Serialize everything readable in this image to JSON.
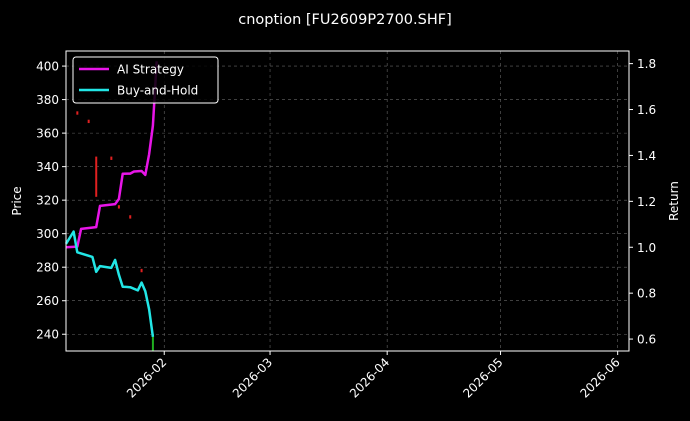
{
  "chart_data": {
    "type": "line",
    "title": "cnoption [FU2609P2700.SHF]",
    "ylabel_left": "Price",
    "ylabel_right": "Return",
    "ylim_left": [
      230,
      409
    ],
    "ylim_right": [
      0.548,
      1.855
    ],
    "xlim": [
      "2026-01-06",
      "2026-06-04"
    ],
    "x_ticks": [
      "2026-02",
      "2026-03",
      "2026-04",
      "2026-05",
      "2026-06"
    ],
    "x_tick_dates": [
      "2026-02-01",
      "2026-03-01",
      "2026-04-01",
      "2026-05-01",
      "2026-06-01"
    ],
    "y_ticks_left": [
      240,
      260,
      280,
      300,
      320,
      340,
      360,
      380,
      400
    ],
    "y_ticks_right": [
      0.6,
      0.8,
      1.0,
      1.2,
      1.4,
      1.6,
      1.8
    ],
    "grid": true,
    "legend_position": "top-left",
    "colors": {
      "background": "#000000",
      "ai_strategy": "#e815e8",
      "buy_and_hold": "#22e6e6",
      "grid": "#666666",
      "candle_up": "#e02020",
      "candle_down": "#20b020",
      "text": "#ffffff"
    },
    "series": [
      {
        "name": "AI Strategy",
        "axis": "right",
        "color": "#e815e8",
        "points": [
          [
            "2026-01-06",
            1.0
          ],
          [
            "2026-01-09",
            1.003
          ],
          [
            "2026-01-10",
            1.08
          ],
          [
            "2026-01-14",
            1.088
          ],
          [
            "2026-01-15",
            1.18
          ],
          [
            "2026-01-19",
            1.188
          ],
          [
            "2026-01-20",
            1.21
          ],
          [
            "2026-01-21",
            1.32
          ],
          [
            "2026-01-23",
            1.321
          ],
          [
            "2026-01-24",
            1.33
          ],
          [
            "2026-01-26",
            1.332
          ],
          [
            "2026-01-27",
            1.315
          ],
          [
            "2026-01-28",
            1.405
          ],
          [
            "2026-01-29",
            1.53
          ],
          [
            "2026-01-30",
            1.81
          ]
        ]
      },
      {
        "name": "Buy-and-Hold",
        "axis": "right",
        "color": "#22e6e6",
        "points": [
          [
            "2026-01-06",
            1.015
          ],
          [
            "2026-01-08",
            1.068
          ],
          [
            "2026-01-09",
            0.978
          ],
          [
            "2026-01-13",
            0.958
          ],
          [
            "2026-01-14",
            0.893
          ],
          [
            "2026-01-15",
            0.918
          ],
          [
            "2026-01-18",
            0.91
          ],
          [
            "2026-01-19",
            0.945
          ],
          [
            "2026-01-20",
            0.88
          ],
          [
            "2026-01-21",
            0.828
          ],
          [
            "2026-01-23",
            0.826
          ],
          [
            "2026-01-25",
            0.812
          ],
          [
            "2026-01-26",
            0.846
          ],
          [
            "2026-01-27",
            0.808
          ],
          [
            "2026-01-28",
            0.73
          ],
          [
            "2026-01-29",
            0.61
          ]
        ]
      }
    ],
    "candles": [
      {
        "date": "2026-01-09",
        "low": 371,
        "high": 373,
        "dir": "up"
      },
      {
        "date": "2026-01-12",
        "low": 366,
        "high": 368,
        "dir": "up"
      },
      {
        "date": "2026-01-14",
        "low": 322,
        "high": 346,
        "dir": "up"
      },
      {
        "date": "2026-01-18",
        "low": 344,
        "high": 346,
        "dir": "up"
      },
      {
        "date": "2026-01-20",
        "low": 315,
        "high": 317,
        "dir": "up"
      },
      {
        "date": "2026-01-23",
        "low": 309,
        "high": 311,
        "dir": "up"
      },
      {
        "date": "2026-01-26",
        "low": 277,
        "high": 279,
        "dir": "up"
      },
      {
        "date": "2026-01-29",
        "low": 230,
        "high": 240,
        "dir": "down"
      }
    ]
  }
}
